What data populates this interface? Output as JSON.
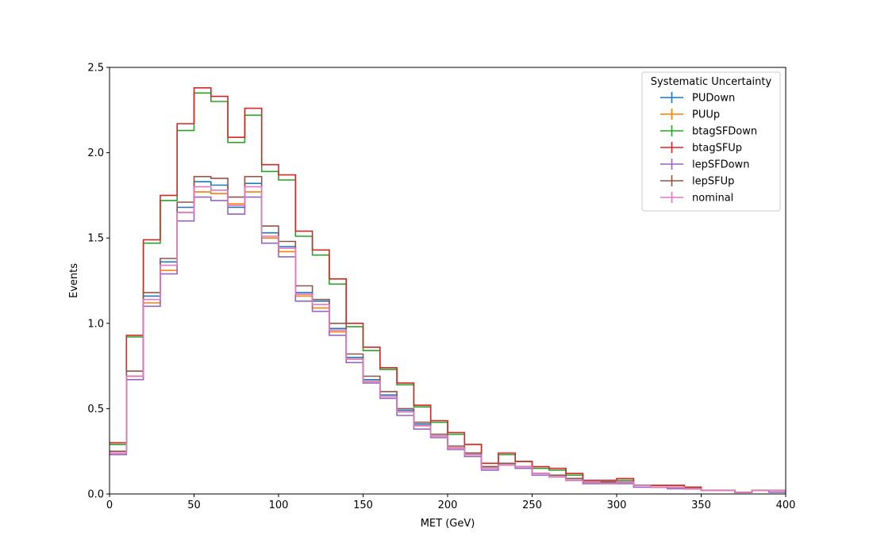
{
  "chart_data": {
    "type": "line",
    "style": "step-histogram",
    "title": "",
    "xlabel": "MET (GeV)",
    "ylabel": "Events",
    "xlim": [
      0,
      400
    ],
    "ylim": [
      0,
      2.5
    ],
    "bin_width": 10,
    "x_ticks": [
      0,
      50,
      100,
      150,
      200,
      250,
      300,
      350,
      400
    ],
    "x_tick_labels": [
      "0",
      "50",
      "100",
      "150",
      "200",
      "250",
      "300",
      "350",
      "400"
    ],
    "y_ticks": [
      0,
      0.5,
      1.0,
      1.5,
      2.0,
      2.5
    ],
    "y_tick_labels": [
      "0.0",
      "0.5",
      "1.0",
      "1.5",
      "2.0",
      "2.5"
    ],
    "grid": false,
    "legend": {
      "title": "Systematic Uncertainty",
      "position": "top-right"
    },
    "x": [
      5,
      15,
      25,
      35,
      45,
      55,
      65,
      75,
      85,
      95,
      105,
      115,
      125,
      135,
      145,
      155,
      165,
      175,
      185,
      195,
      205,
      215,
      225,
      235,
      245,
      255,
      265,
      275,
      285,
      295,
      305,
      315,
      325,
      335,
      345,
      355,
      365,
      375,
      385,
      395
    ],
    "series": [
      {
        "name": "PUDown",
        "color": "#1f77b4",
        "values": [
          0.24,
          0.69,
          1.16,
          1.36,
          1.68,
          1.83,
          1.81,
          1.68,
          1.82,
          1.53,
          1.45,
          1.18,
          1.13,
          0.97,
          0.8,
          0.67,
          0.58,
          0.49,
          0.41,
          0.34,
          0.28,
          0.24,
          0.16,
          0.18,
          0.16,
          0.12,
          0.11,
          0.09,
          0.07,
          0.07,
          0.07,
          0.05,
          0.04,
          0.04,
          0.03,
          0.02,
          0.02,
          0.01,
          0.02,
          0.02
        ]
      },
      {
        "name": "PUUp",
        "color": "#ff7f0e",
        "values": [
          0.24,
          0.69,
          1.12,
          1.31,
          1.65,
          1.77,
          1.76,
          1.7,
          1.77,
          1.5,
          1.42,
          1.16,
          1.09,
          0.95,
          0.79,
          0.66,
          0.57,
          0.48,
          0.4,
          0.34,
          0.27,
          0.23,
          0.15,
          0.17,
          0.16,
          0.12,
          0.1,
          0.08,
          0.07,
          0.06,
          0.07,
          0.05,
          0.04,
          0.04,
          0.03,
          0.02,
          0.02,
          0.01,
          0.02,
          0.02
        ]
      },
      {
        "name": "btagSFDown",
        "color": "#2ca02c",
        "values": [
          0.29,
          0.92,
          1.47,
          1.72,
          2.13,
          2.35,
          2.3,
          2.06,
          2.22,
          1.89,
          1.84,
          1.51,
          1.4,
          1.23,
          0.98,
          0.84,
          0.73,
          0.64,
          0.51,
          0.42,
          0.35,
          0.29,
          0.18,
          0.23,
          0.19,
          0.15,
          0.14,
          0.11,
          0.08,
          0.08,
          0.08,
          0.05,
          0.05,
          0.05,
          0.04,
          0.02,
          0.02,
          0.01,
          0.02,
          0.02
        ]
      },
      {
        "name": "btagSFUp",
        "color": "#d62728",
        "values": [
          0.3,
          0.93,
          1.49,
          1.75,
          2.17,
          2.38,
          2.33,
          2.09,
          2.26,
          1.93,
          1.87,
          1.54,
          1.43,
          1.26,
          1.0,
          0.86,
          0.74,
          0.65,
          0.52,
          0.43,
          0.36,
          0.29,
          0.18,
          0.24,
          0.19,
          0.16,
          0.15,
          0.12,
          0.08,
          0.08,
          0.09,
          0.05,
          0.05,
          0.05,
          0.04,
          0.02,
          0.02,
          0.01,
          0.02,
          0.02
        ]
      },
      {
        "name": "lepSFDown",
        "color": "#9467bd",
        "values": [
          0.23,
          0.67,
          1.1,
          1.29,
          1.6,
          1.74,
          1.72,
          1.64,
          1.74,
          1.47,
          1.39,
          1.13,
          1.07,
          0.93,
          0.77,
          0.65,
          0.56,
          0.46,
          0.38,
          0.33,
          0.26,
          0.22,
          0.14,
          0.17,
          0.15,
          0.11,
          0.1,
          0.08,
          0.06,
          0.06,
          0.06,
          0.04,
          0.04,
          0.03,
          0.03,
          0.02,
          0.02,
          0.01,
          0.02,
          0.01
        ]
      },
      {
        "name": "lepSFUp",
        "color": "#8c564b",
        "values": [
          0.25,
          0.72,
          1.18,
          1.38,
          1.71,
          1.86,
          1.85,
          1.74,
          1.86,
          1.57,
          1.48,
          1.22,
          1.14,
          1.0,
          0.82,
          0.69,
          0.6,
          0.5,
          0.42,
          0.35,
          0.28,
          0.24,
          0.16,
          0.18,
          0.16,
          0.12,
          0.11,
          0.09,
          0.07,
          0.07,
          0.07,
          0.05,
          0.04,
          0.04,
          0.03,
          0.02,
          0.02,
          0.01,
          0.02,
          0.02
        ]
      },
      {
        "name": "nominal",
        "color": "#e377c2",
        "values": [
          0.24,
          0.69,
          1.14,
          1.34,
          1.65,
          1.8,
          1.78,
          1.69,
          1.8,
          1.51,
          1.44,
          1.17,
          1.11,
          0.96,
          0.79,
          0.66,
          0.57,
          0.48,
          0.4,
          0.34,
          0.27,
          0.23,
          0.15,
          0.17,
          0.16,
          0.12,
          0.1,
          0.08,
          0.07,
          0.06,
          0.07,
          0.05,
          0.04,
          0.04,
          0.03,
          0.02,
          0.02,
          0.01,
          0.02,
          0.02
        ]
      }
    ]
  }
}
